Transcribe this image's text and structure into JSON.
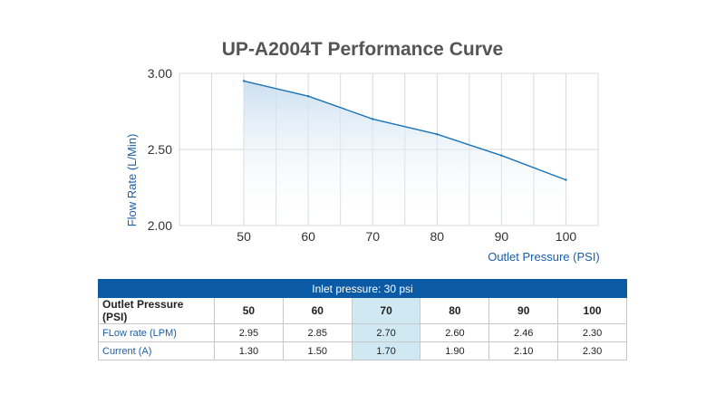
{
  "chart_data": {
    "type": "line",
    "title": "UP-A2004T Performance Curve",
    "xlabel": "Outlet Pressure (PSI)",
    "ylabel": "Flow Rate (L/Min)",
    "x": [
      50,
      60,
      70,
      80,
      90,
      100
    ],
    "series": [
      {
        "values": [
          2.95,
          2.85,
          2.7,
          2.6,
          2.46,
          2.3
        ]
      }
    ],
    "xticks": [
      "50",
      "60",
      "70",
      "80",
      "90",
      "100"
    ],
    "yticks": [
      "2.00",
      "2.50",
      "3.00"
    ],
    "xlim": [
      40,
      105
    ],
    "ylim": [
      2.0,
      3.0
    ],
    "grid": true,
    "line_color": "#1a73b8",
    "fill_color": "#cfe2f3"
  },
  "table": {
    "caption": "Inlet pressure: 30 psi",
    "header_label": "Outlet Pressure (PSI)",
    "columns": [
      "50",
      "60",
      "70",
      "80",
      "90",
      "100"
    ],
    "highlight_column": 2,
    "highlight_color": "#cfe8f2",
    "rows": [
      {
        "label": "FLow rate (LPM)",
        "values": [
          "2.95",
          "2.85",
          "2.70",
          "2.60",
          "2.46",
          "2.30"
        ]
      },
      {
        "label": "Current (A)",
        "values": [
          "1.30",
          "1.50",
          "1.70",
          "1.90",
          "2.10",
          "2.30"
        ]
      }
    ]
  }
}
